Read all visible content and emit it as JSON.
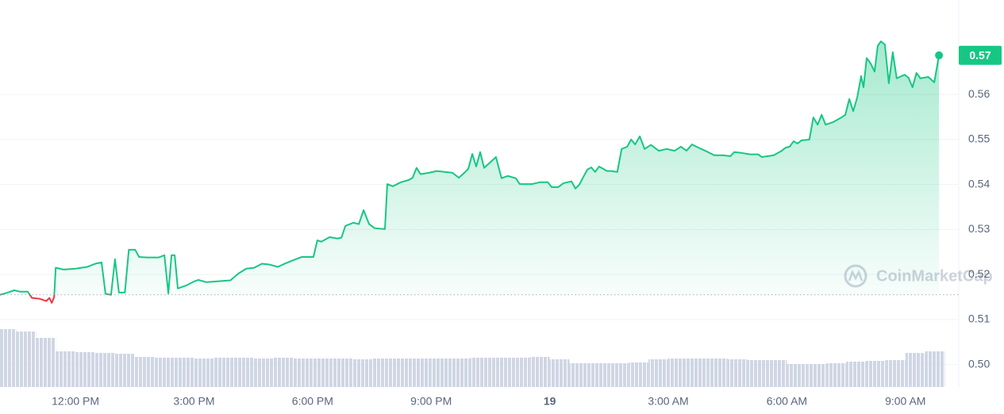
{
  "chart_data": {
    "type": "line",
    "watermark": "CoinMarketCap",
    "color": "#16c784",
    "down_color": "#ea3943",
    "volume_color": "#cfd6e4",
    "grid": true,
    "xlim": [
      10.09,
      34.35
    ],
    "xticks": [
      {
        "value": 12,
        "label": "12:00 PM"
      },
      {
        "value": 15,
        "label": "3:00 PM"
      },
      {
        "value": 18,
        "label": "6:00 PM"
      },
      {
        "value": 21,
        "label": "9:00 PM"
      },
      {
        "value": 24,
        "label": "19"
      },
      {
        "value": 27,
        "label": "3:00 AM"
      },
      {
        "value": 30,
        "label": "6:00 AM"
      },
      {
        "value": 33,
        "label": "9:00 AM"
      }
    ],
    "ylim": [
      0.495,
      0.581
    ],
    "yticks": [
      {
        "value": 0.5,
        "label": "0.50"
      },
      0.51,
      0.52,
      0.53,
      0.54,
      0.55,
      0.56
    ],
    "x": [
      10.09,
      10.29,
      10.45,
      10.59,
      10.79,
      10.9,
      11.1,
      11.26,
      11.34,
      11.4,
      11.46,
      11.5,
      11.7,
      12,
      12.3,
      12.5,
      12.66,
      12.76,
      12.9,
      13,
      13.1,
      13.25,
      13.35,
      13.51,
      13.61,
      13.81,
      14.11,
      14.25,
      14.35,
      14.43,
      14.51,
      14.59,
      14.81,
      15.01,
      15.11,
      15.31,
      15.92,
      16.12,
      16.32,
      16.52,
      16.72,
      16.92,
      17.12,
      17.32,
      17.52,
      17.72,
      18.02,
      18.12,
      18.22,
      18.43,
      18.63,
      18.73,
      18.83,
      19.03,
      19.17,
      19.29,
      19.43,
      19.57,
      19.83,
      19.89,
      20.03,
      20.23,
      20.43,
      20.53,
      20.63,
      20.73,
      20.94,
      21.14,
      21.34,
      21.54,
      21.7,
      21.84,
      21.94,
      22.04,
      22.14,
      22.24,
      22.34,
      22.44,
      22.64,
      22.78,
      22.94,
      23.14,
      23.24,
      23.55,
      23.75,
      23.95,
      24.05,
      24.21,
      24.35,
      24.55,
      24.65,
      24.75,
      24.95,
      25.05,
      25.15,
      25.25,
      25.45,
      25.55,
      25.71,
      25.82,
      25.96,
      26.06,
      26.16,
      26.28,
      26.4,
      26.56,
      26.76,
      26.96,
      27.16,
      27.32,
      27.46,
      27.6,
      27.76,
      27.96,
      28.16,
      28.37,
      28.57,
      28.67,
      28.87,
      29.07,
      29.27,
      29.37,
      29.67,
      29.87,
      29.97,
      30.07,
      30.17,
      30.27,
      30.37,
      30.57,
      30.67,
      30.78,
      30.88,
      30.98,
      31.18,
      31.38,
      31.48,
      31.58,
      31.68,
      31.78,
      31.88,
      31.94,
      32.02,
      32.12,
      32.22,
      32.3,
      32.38,
      32.48,
      32.58,
      32.68,
      32.78,
      32.98,
      33.08,
      33.18,
      33.28,
      33.38,
      33.58,
      33.73,
      33.85
    ],
    "values": [
      0.5155,
      0.516,
      0.5165,
      0.5162,
      0.5162,
      0.5148,
      0.5146,
      0.5141,
      0.5148,
      0.5137,
      0.515,
      0.5215,
      0.5211,
      0.5213,
      0.5217,
      0.5224,
      0.5227,
      0.5157,
      0.5155,
      0.5234,
      0.516,
      0.516,
      0.5255,
      0.5255,
      0.5239,
      0.5238,
      0.5238,
      0.5243,
      0.5158,
      0.5243,
      0.5243,
      0.5169,
      0.5176,
      0.5185,
      0.5188,
      0.5183,
      0.5187,
      0.5202,
      0.5213,
      0.5215,
      0.5224,
      0.5222,
      0.5217,
      0.5225,
      0.5232,
      0.5239,
      0.5239,
      0.5276,
      0.5273,
      0.5283,
      0.528,
      0.5282,
      0.5308,
      0.5315,
      0.5312,
      0.5343,
      0.5312,
      0.5303,
      0.5301,
      0.5401,
      0.5396,
      0.5405,
      0.541,
      0.5415,
      0.5437,
      0.5423,
      0.5426,
      0.543,
      0.5428,
      0.5426,
      0.5415,
      0.5426,
      0.5435,
      0.5468,
      0.544,
      0.5472,
      0.5437,
      0.5445,
      0.5461,
      0.5414,
      0.5419,
      0.5414,
      0.5401,
      0.5401,
      0.5405,
      0.5405,
      0.5394,
      0.5394,
      0.5403,
      0.5407,
      0.5391,
      0.54,
      0.5433,
      0.5438,
      0.5428,
      0.544,
      0.543,
      0.543,
      0.5428,
      0.5479,
      0.5484,
      0.55,
      0.5489,
      0.5507,
      0.5479,
      0.5488,
      0.5475,
      0.5479,
      0.5475,
      0.5484,
      0.5475,
      0.5489,
      0.5482,
      0.5474,
      0.5465,
      0.5465,
      0.5463,
      0.5472,
      0.547,
      0.5467,
      0.5467,
      0.5461,
      0.5465,
      0.5475,
      0.5482,
      0.5484,
      0.5496,
      0.5491,
      0.5498,
      0.55,
      0.5549,
      0.5533,
      0.5555,
      0.5533,
      0.5539,
      0.5549,
      0.5555,
      0.559,
      0.5563,
      0.5593,
      0.5641,
      0.5616,
      0.5681,
      0.5669,
      0.5651,
      0.5708,
      0.5718,
      0.5711,
      0.5625,
      0.5694,
      0.5636,
      0.5644,
      0.5637,
      0.5616,
      0.5648,
      0.5636,
      0.5639,
      0.5627,
      0.5687
    ],
    "value_labels": [
      null,
      null,
      null,
      null,
      null,
      null,
      null,
      null,
      null,
      null,
      null,
      null,
      null,
      null,
      null,
      null,
      null,
      null,
      null,
      null,
      null,
      null,
      null,
      null,
      null,
      null,
      null,
      null,
      null,
      null,
      null,
      null,
      null,
      null,
      null,
      null,
      null,
      null,
      null,
      null,
      null,
      null,
      null,
      null,
      null,
      null,
      null,
      null,
      null,
      null,
      null,
      null,
      null,
      null,
      null,
      null,
      null,
      null,
      null,
      null,
      null,
      null,
      null,
      null,
      null,
      null,
      null,
      null,
      null,
      null,
      null,
      null,
      null,
      null,
      null,
      null,
      null,
      null,
      null,
      null,
      null,
      null,
      null,
      null,
      null,
      null,
      null,
      null,
      null,
      null,
      null,
      null,
      null,
      null,
      null,
      null,
      null,
      null,
      null,
      null,
      null,
      null,
      null,
      null,
      null,
      null,
      null,
      null,
      null,
      null,
      null,
      null,
      null,
      null,
      null,
      null,
      null,
      null,
      null,
      null,
      null,
      null,
      null,
      null,
      null,
      null,
      null,
      null,
      null,
      null,
      null,
      null,
      null,
      null,
      null,
      null,
      null,
      null,
      null,
      null,
      null,
      null,
      null,
      null,
      null,
      null,
      null,
      null,
      null,
      null,
      null,
      null,
      null,
      null,
      null,
      null,
      null,
      null,
      "0.57"
    ],
    "volume": {
      "x": [
        10.25,
        10.75,
        11.25,
        11.75,
        12.25,
        12.75,
        13.25,
        13.75,
        14.25,
        14.75,
        15.25,
        15.75,
        16.25,
        16.75,
        17.25,
        17.75,
        18.25,
        18.75,
        19.25,
        19.75,
        20.25,
        20.75,
        21.25,
        21.75,
        22.25,
        22.75,
        23.25,
        23.75,
        24.25,
        24.75,
        25.25,
        25.75,
        26.25,
        26.75,
        27.25,
        27.75,
        28.25,
        28.75,
        29.25,
        29.75,
        30.25,
        30.75,
        31.25,
        31.75,
        32.25,
        32.75,
        33.25,
        33.75
      ],
      "values": [
        73,
        70,
        62,
        45,
        44,
        43,
        42,
        38,
        37,
        37,
        36,
        37,
        37,
        36,
        37,
        36,
        36,
        36,
        35,
        36,
        36,
        36,
        36,
        36,
        37,
        37,
        37,
        38,
        35,
        30,
        30,
        30,
        31,
        35,
        36,
        36,
        36,
        35,
        34,
        34,
        29,
        29,
        30,
        32,
        33,
        34,
        43,
        45
      ]
    }
  }
}
